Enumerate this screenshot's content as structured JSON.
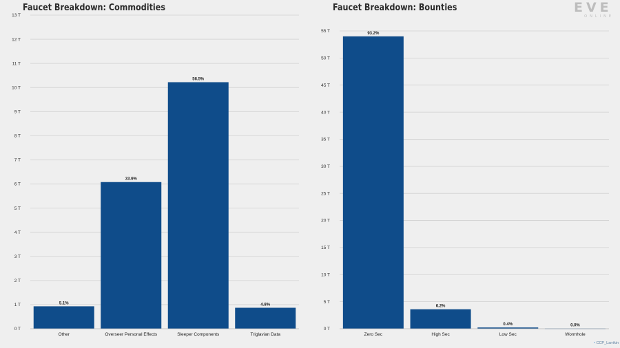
{
  "logo": {
    "main": "EVE",
    "sub": "ONLINE"
  },
  "credit": "CCP_Larrikin",
  "bar_color": "#0f4c8a",
  "chart_data": [
    {
      "type": "bar",
      "title": "Faucet Breakdown: Commodities",
      "categories": [
        "Other",
        "Overseer Personal Effects",
        "Sleeper Components",
        "Triglavian Data"
      ],
      "values": [
        0.93,
        6.08,
        10.22,
        0.87
      ],
      "data_labels": [
        "5.1%",
        "33.6%",
        "56.5%",
        "4.8%"
      ],
      "ylim": [
        0,
        13
      ],
      "yticks": [
        0,
        1,
        2,
        3,
        4,
        5,
        6,
        7,
        8,
        9,
        10,
        11,
        12,
        13
      ],
      "ytick_labels": [
        "0 T",
        "1 T",
        "2 T",
        "3 T",
        "4 T",
        "5 T",
        "6 T",
        "7 T",
        "8 T",
        "9 T",
        "10 T",
        "11 T",
        "12 T",
        "13 T"
      ],
      "xlabel": "",
      "ylabel": "",
      "grid": true
    },
    {
      "type": "bar",
      "title": "Faucet Breakdown: Bounties",
      "categories": [
        "Zero Sec",
        "High Sec",
        "Low Sec",
        "Wormhole"
      ],
      "values": [
        54.0,
        3.6,
        0.23,
        0.05
      ],
      "data_labels": [
        "93.2%",
        "6.2%",
        "0.4%",
        "0.0%"
      ],
      "ylim": [
        0,
        55
      ],
      "yticks": [
        0,
        5,
        10,
        15,
        20,
        25,
        30,
        35,
        40,
        45,
        50,
        55
      ],
      "ytick_labels": [
        "0 T",
        "5 T",
        "10 T",
        "15 T",
        "20 T",
        "25 T",
        "30 T",
        "35 T",
        "40 T",
        "45 T",
        "50 T",
        "55 T"
      ],
      "xlabel": "",
      "ylabel": "",
      "grid": true
    }
  ]
}
